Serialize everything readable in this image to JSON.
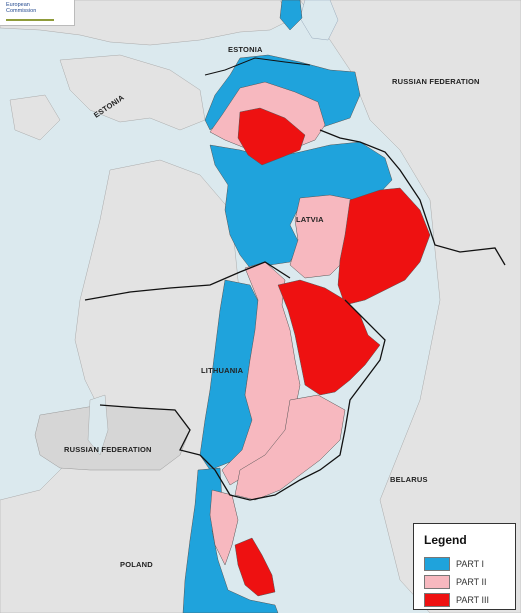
{
  "logo": {
    "line1": "European",
    "line2": "Commission"
  },
  "labels": {
    "estonia_top": "ESTONIA",
    "estonia_rotated": "ESTONIA",
    "russia_east": "RUSSIAN FEDERATION",
    "latvia": "LATVIA",
    "lithuania": "LITHUANIA",
    "russia_kaliningrad": "RUSSIAN FEDERATION",
    "belarus": "BELARUS",
    "poland": "POLAND"
  },
  "legend": {
    "title": "Legend",
    "items": [
      {
        "label": "PART I",
        "color": "#1fa3dc"
      },
      {
        "label": "PART II",
        "color": "#f7b8bf"
      },
      {
        "label": "PART III",
        "color": "#ee1111"
      }
    ]
  },
  "colors": {
    "sea": "#dbe9ee",
    "land": "#e3e3e3",
    "part1": "#1fa3dc",
    "part2": "#f7b8bf",
    "part3": "#ee1111",
    "border": "#111111"
  }
}
